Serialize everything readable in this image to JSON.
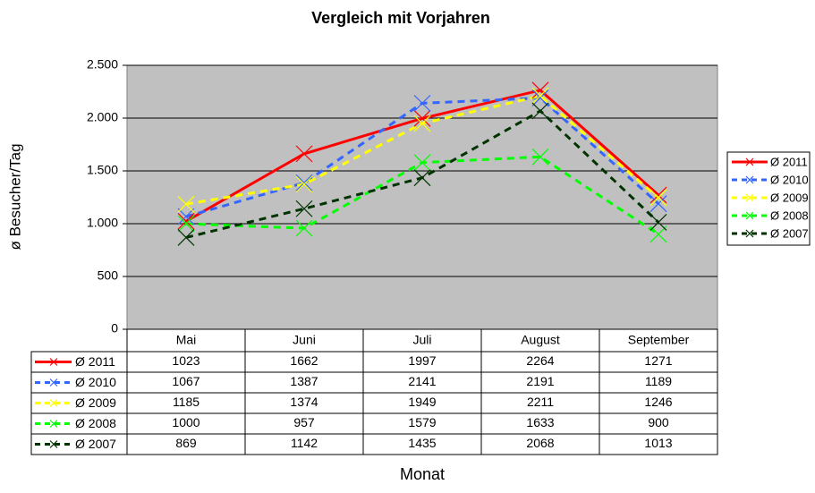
{
  "chart_data": {
    "type": "line",
    "title": "Vergleich mit Vorjahren",
    "y_label": "ø Besucher/Tag",
    "x_label": "Monat",
    "categories": [
      "Mai",
      "Juni",
      "Juli",
      "August",
      "September"
    ],
    "ylim": [
      0,
      2500
    ],
    "yticks": [
      0,
      500,
      {
        "value": 1000,
        "label": "1.000"
      },
      {
        "value": 1500,
        "label": "1.500"
      },
      {
        "value": 2000,
        "label": "2.000"
      },
      {
        "value": 2500,
        "label": "2.500"
      }
    ],
    "grid": true,
    "legend": "right",
    "plot_background": "#c0c0c0",
    "series": [
      {
        "name": "Ø 2011",
        "color": "#ff0000",
        "line_style": "solid",
        "values": [
          1023,
          1662,
          1997,
          2264,
          1271
        ]
      },
      {
        "name": "Ø 2010",
        "color": "#3366ff",
        "line_style": "dashed",
        "values": [
          1067,
          1387,
          2141,
          2191,
          1189
        ]
      },
      {
        "name": "Ø 2009",
        "color": "#ffff00",
        "line_style": "dashed",
        "values": [
          1185,
          1374,
          1949,
          2211,
          1246
        ]
      },
      {
        "name": "Ø 2008",
        "color": "#00ff00",
        "line_style": "dashed",
        "values": [
          1000,
          957,
          1579,
          1633,
          900
        ]
      },
      {
        "name": "Ø 2007",
        "color": "#003300",
        "line_style": "dashed",
        "values": [
          869,
          1142,
          1435,
          2068,
          1013
        ]
      }
    ]
  }
}
